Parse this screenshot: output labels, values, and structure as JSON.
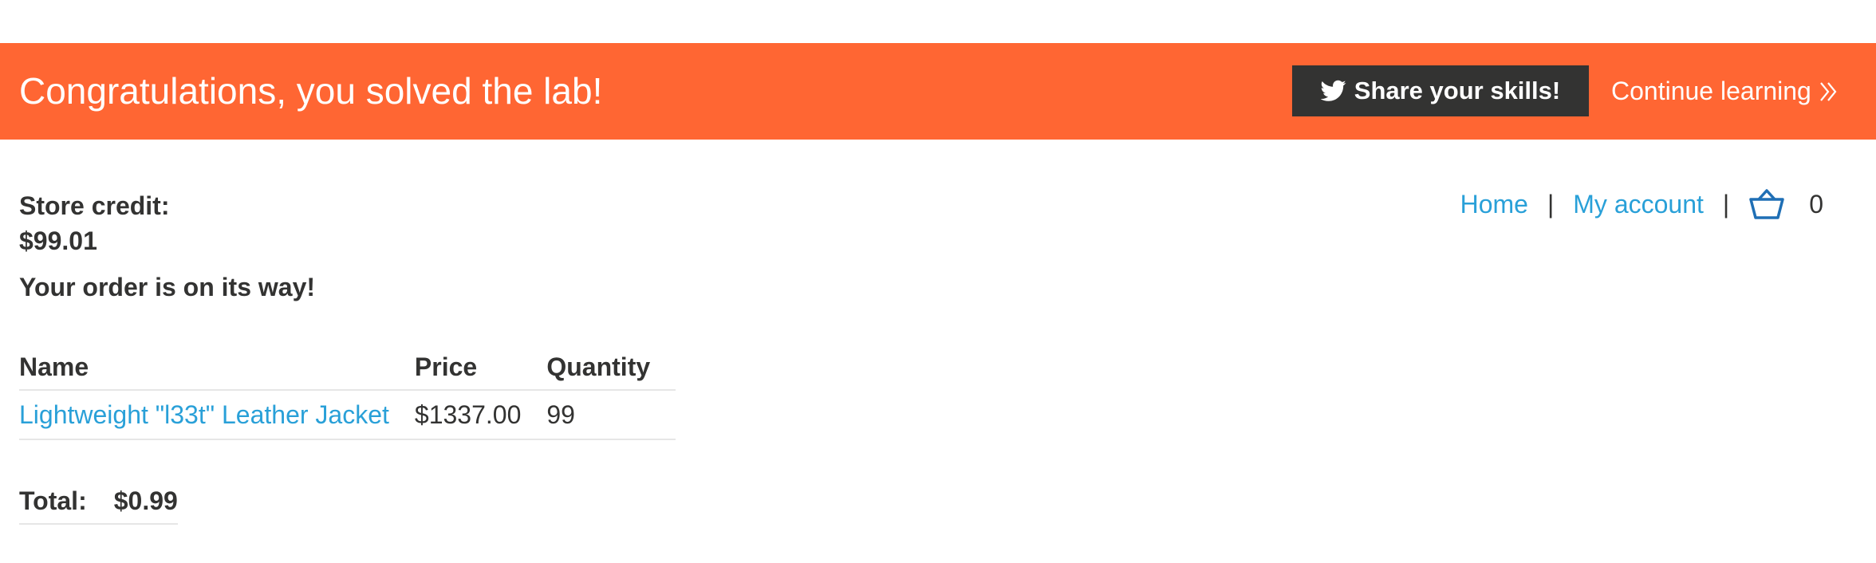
{
  "banner": {
    "title": "Congratulations, you solved the lab!",
    "share_label": "Share your skills!",
    "continue_label": "Continue learning",
    "color": "#ff6633"
  },
  "account": {
    "store_credit_label": "Store credit:",
    "store_credit_value": "$99.01"
  },
  "nav": {
    "home": "Home",
    "my_account": "My account",
    "separator": "|",
    "cart_count": "0",
    "link_color": "#29a0d8"
  },
  "order": {
    "message": "Your order is on its way!",
    "columns": [
      "Name",
      "Price",
      "Quantity"
    ],
    "rows": [
      {
        "name": "Lightweight \"l33t\" Leather Jacket",
        "price": "$1337.00",
        "quantity": "99"
      }
    ],
    "total_label": "Total:",
    "total_value": "$0.99"
  },
  "icons": {
    "share": "twitter-icon",
    "continue": "double-chevron-right-icon",
    "cart": "basket-icon"
  }
}
